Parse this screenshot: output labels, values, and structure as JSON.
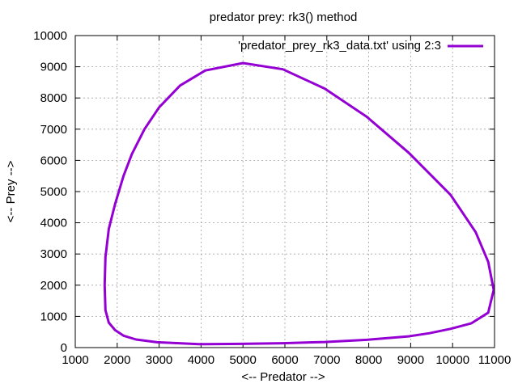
{
  "chart_data": {
    "type": "line",
    "title": "predator prey: rk3() method",
    "xlabel": "<-- Predator -->",
    "ylabel": "<-- Prey -->",
    "xlim": [
      1000,
      11000
    ],
    "ylim": [
      0,
      10000
    ],
    "xticks": [
      "1000",
      "2000",
      "3000",
      "4000",
      "5000",
      "6000",
      "7000",
      "8000",
      "9000",
      "10000",
      "11000"
    ],
    "yticks": [
      "0",
      "1000",
      "2000",
      "3000",
      "4000",
      "5000",
      "6000",
      "7000",
      "8000",
      "9000",
      "10000"
    ],
    "grid": true,
    "legend_position": "top-right",
    "series": [
      {
        "name": "'predator_prey_rk3_data.txt' using 2:3",
        "color": "#9400d3",
        "x": [
          5000,
          5950,
          6950,
          7950,
          8950,
          9950,
          10550,
          10850,
          10980,
          10850,
          10450,
          9950,
          9450,
          8950,
          7950,
          6950,
          5950,
          4950,
          3950,
          2950,
          2450,
          2150,
          1950,
          1800,
          1720,
          1700,
          1720,
          1800,
          1950,
          2150,
          2350,
          2650,
          3000,
          3500,
          4100,
          5000
        ],
        "y": [
          9120,
          8920,
          8300,
          7400,
          6250,
          4900,
          3700,
          2750,
          1850,
          1120,
          780,
          600,
          460,
          360,
          250,
          180,
          140,
          120,
          110,
          170,
          260,
          380,
          560,
          800,
          1200,
          2000,
          2900,
          3800,
          4600,
          5500,
          6200,
          7000,
          7700,
          8400,
          8880,
          9120
        ]
      }
    ]
  }
}
